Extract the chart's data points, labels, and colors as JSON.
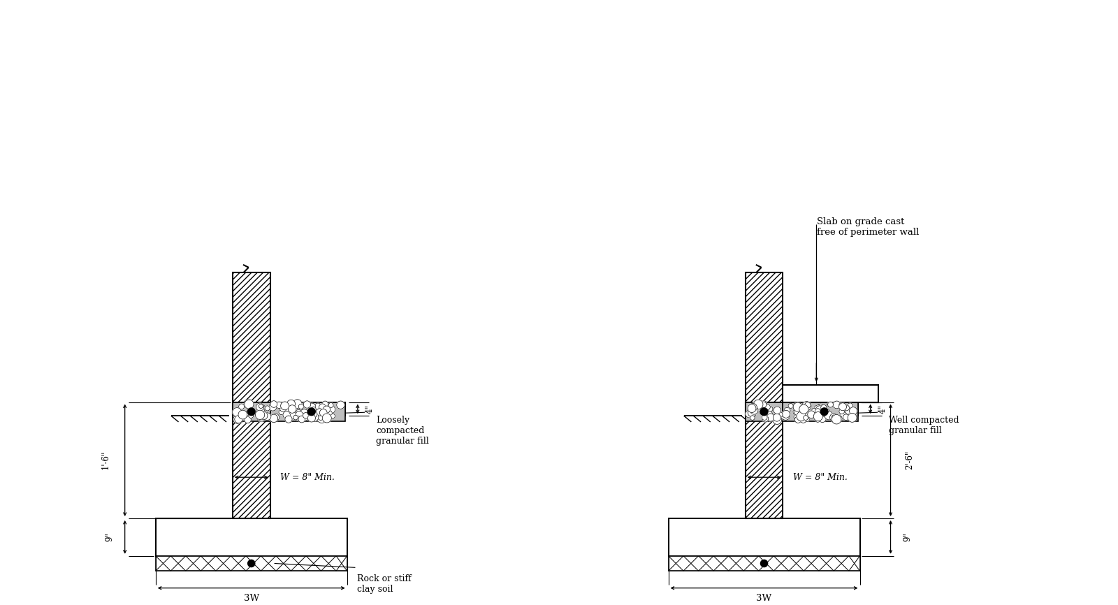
{
  "bg_color": "#ffffff",
  "annotations_left": {
    "loosely": "Loosely\ncompacted\ngranular fill",
    "rock": "Rock or stiff\nclay soil",
    "w_min": "W = 8\" Min.",
    "dim_4": "4\"",
    "dim_1_6": "1'-6\"",
    "dim_9": "9\"",
    "dim_3w": "3W"
  },
  "annotations_right": {
    "slab": "Slab on grade cast\nfree of perimeter wall",
    "well": "Well compacted\ngranular fill",
    "w_min": "W = 8\" Min.",
    "dim_4": "4\"",
    "dim_2_6": "2'-6\"",
    "dim_9": "9\"",
    "dim_3w": "3W"
  }
}
